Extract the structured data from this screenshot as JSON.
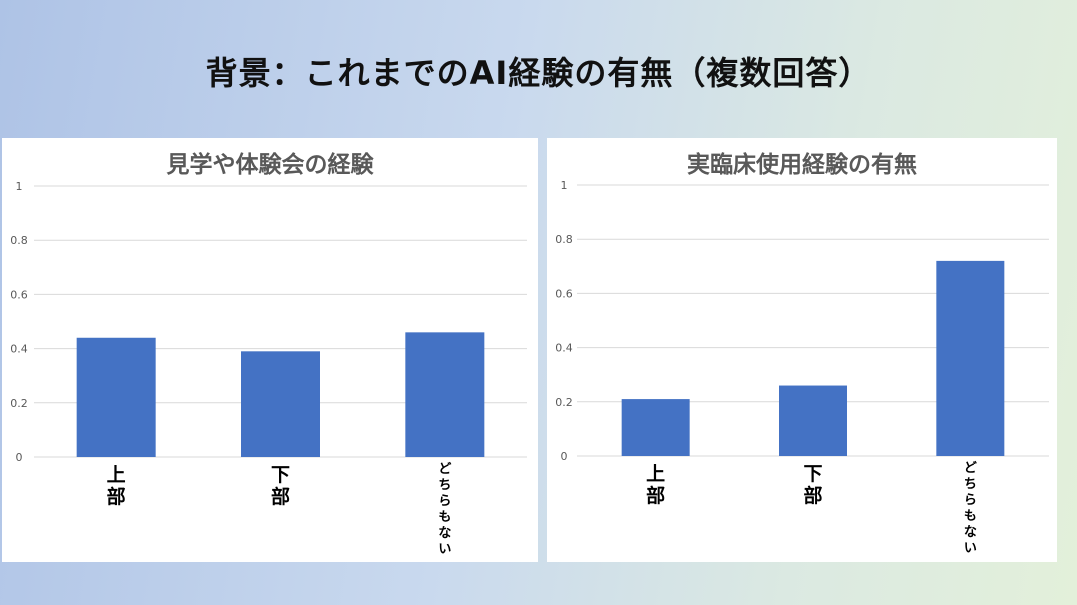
{
  "slide": {
    "title": "背景：これまでのAI経験の有無（複数回答）"
  },
  "colors": {
    "bar": "#4472c4",
    "grid": "#d9d9d9",
    "axis_text": "#595959"
  },
  "chart_data": [
    {
      "type": "bar",
      "title": "見学や体験会の経験",
      "categories": [
        "上部",
        "下部",
        "どちらもない"
      ],
      "values": [
        0.44,
        0.39,
        0.46
      ],
      "ylim": [
        0,
        1
      ],
      "yticks": [
        "0",
        "0.2",
        "0.4",
        "0.6",
        "0.8",
        "1"
      ],
      "xlabel": "",
      "ylabel": "",
      "grid": true,
      "legend": "none"
    },
    {
      "type": "bar",
      "title": "実臨床使用経験の有無",
      "categories": [
        "上部",
        "下部",
        "どちらもない"
      ],
      "values": [
        0.21,
        0.26,
        0.72
      ],
      "ylim": [
        0,
        1
      ],
      "yticks": [
        "0",
        "0.2",
        "0.4",
        "0.6",
        "0.8",
        "1"
      ],
      "xlabel": "",
      "ylabel": "",
      "grid": true,
      "legend": "none"
    }
  ]
}
